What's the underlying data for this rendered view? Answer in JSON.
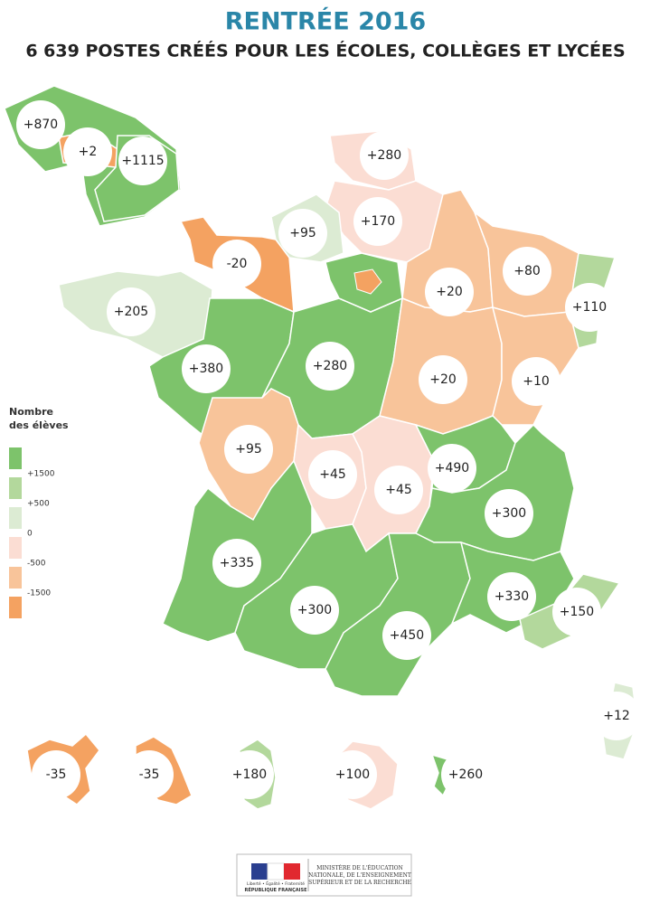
{
  "header": {
    "title": "RENTRÉE 2016",
    "subtitle": "6 639 POSTES CRÉÉS POUR LES ÉCOLES, COLLÈGES ET LYCÉES"
  },
  "legend": {
    "title_lines": [
      "Nombre",
      "des élèves"
    ],
    "labels": [
      "+1500",
      "+500",
      "0",
      "-500",
      "-1500"
    ],
    "colors": [
      "#7dc36b",
      "#b3d89c",
      "#dcebd3",
      "#fbddd3",
      "#f8c49a",
      "#f4a261"
    ]
  },
  "regions": [
    {
      "label": "+870",
      "color": "#7dc36b"
    },
    {
      "label": "+2",
      "color": "#f4a261"
    },
    {
      "label": "+1115",
      "color": "#7dc36b"
    },
    {
      "label": "+280",
      "color": "#fbddd3"
    },
    {
      "label": "+170",
      "color": "#fbddd3"
    },
    {
      "label": "+95",
      "color": "#dcebd3"
    },
    {
      "label": "-20",
      "color": "#f4a261"
    },
    {
      "label": "+205",
      "color": "#dcebd3"
    },
    {
      "label": "+20",
      "color": "#f8c49a"
    },
    {
      "label": "+80",
      "color": "#f8c49a"
    },
    {
      "label": "+110",
      "color": "#b3d89c"
    },
    {
      "label": "+380",
      "color": "#7dc36b"
    },
    {
      "label": "+280",
      "color": "#7dc36b"
    },
    {
      "label": "+20",
      "color": "#f8c49a"
    },
    {
      "label": "+10",
      "color": "#f8c49a"
    },
    {
      "label": "+95",
      "color": "#f8c49a"
    },
    {
      "label": "+45",
      "color": "#fbddd3"
    },
    {
      "label": "+45",
      "color": "#fbddd3"
    },
    {
      "label": "+490",
      "color": "#7dc36b"
    },
    {
      "label": "+300",
      "color": "#7dc36b"
    },
    {
      "label": "+335",
      "color": "#7dc36b"
    },
    {
      "label": "+300",
      "color": "#7dc36b"
    },
    {
      "label": "+450",
      "color": "#7dc36b"
    },
    {
      "label": "+330",
      "color": "#7dc36b"
    },
    {
      "label": "+150",
      "color": "#b3d89c"
    },
    {
      "label": "+12",
      "color": "#dcebd3"
    },
    {
      "label": "-35",
      "color": "#f4a261"
    },
    {
      "label": "-35",
      "color": "#f4a261"
    },
    {
      "label": "+180",
      "color": "#b3d89c"
    },
    {
      "label": "+100",
      "color": "#fbddd3"
    },
    {
      "label": "+260",
      "color": "#7dc36b"
    }
  ],
  "footer": {
    "motto": "Liberté • Égalité • Fraternité",
    "republic": "RÉPUBLIQUE FRANÇAISE",
    "ministry_lines": [
      "MINISTÈRE DE L'ÉDUCATION",
      "NATIONALE, DE L'ENSEIGNEMENT",
      "SUPÉRIEUR ET DE LA RECHERCHE"
    ]
  }
}
